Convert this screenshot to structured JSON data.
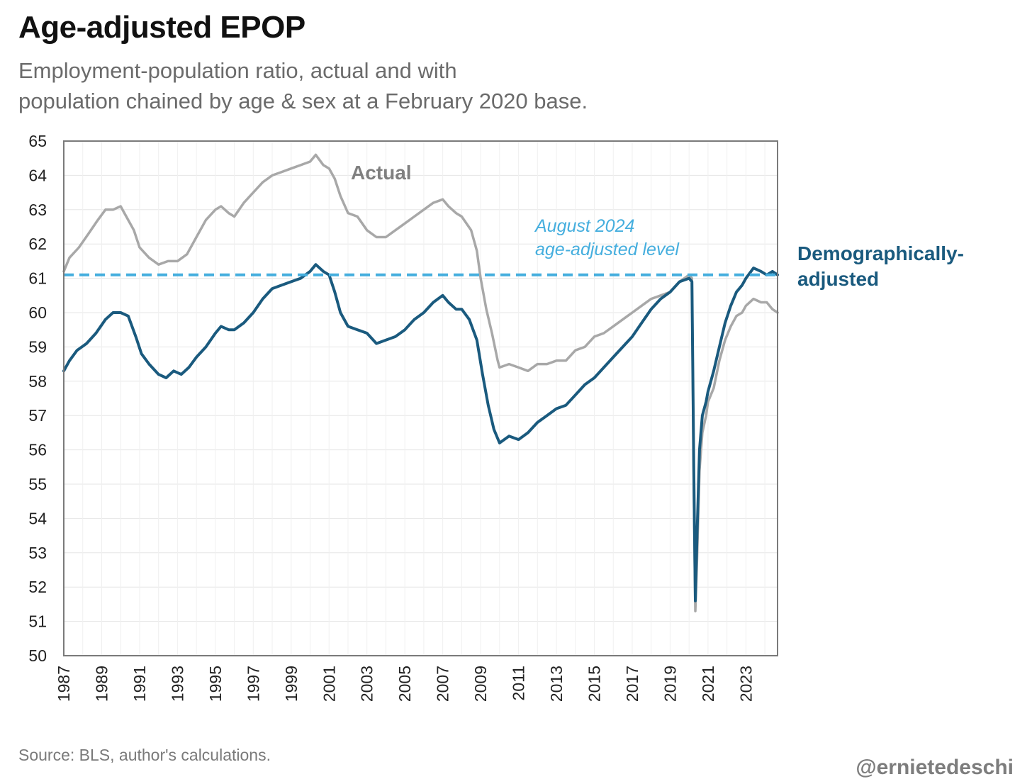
{
  "header": {
    "title": "Age-adjusted EPOP",
    "subtitle_line1": "Employment-population ratio, actual and with",
    "subtitle_line2": "population chained by age & sex at a February 2020 base."
  },
  "footer": {
    "source": "Source: BLS, author's calculations.",
    "handle": "@ernietedeschi"
  },
  "chart_data": {
    "type": "line",
    "xlim": [
      1987.0,
      2024.67
    ],
    "ylim": [
      50,
      65
    ],
    "grid": true,
    "x_ticks": [
      "1987",
      "1989",
      "1991",
      "1993",
      "1995",
      "1997",
      "1999",
      "2001",
      "2003",
      "2005",
      "2007",
      "2009",
      "2011",
      "2013",
      "2015",
      "2017",
      "2019",
      "2021",
      "2023"
    ],
    "y_ticks": [
      50,
      51,
      52,
      53,
      54,
      55,
      56,
      57,
      58,
      59,
      60,
      61,
      62,
      63,
      64,
      65
    ],
    "reference_line": {
      "y": 61.1,
      "label_line1": "August 2024",
      "label_line2": "age-adjusted level",
      "color": "#45aede",
      "style": "dashed"
    },
    "series": [
      {
        "name": "Actual",
        "color": "#a8a8a8",
        "points": [
          [
            1987.0,
            61.2
          ],
          [
            1987.3,
            61.6
          ],
          [
            1987.8,
            61.9
          ],
          [
            1988.3,
            62.3
          ],
          [
            1988.8,
            62.7
          ],
          [
            1989.2,
            63.0
          ],
          [
            1989.6,
            63.0
          ],
          [
            1990.0,
            63.1
          ],
          [
            1990.3,
            62.8
          ],
          [
            1990.7,
            62.4
          ],
          [
            1991.0,
            61.9
          ],
          [
            1991.5,
            61.6
          ],
          [
            1992.0,
            61.4
          ],
          [
            1992.5,
            61.5
          ],
          [
            1993.0,
            61.5
          ],
          [
            1993.5,
            61.7
          ],
          [
            1994.0,
            62.2
          ],
          [
            1994.5,
            62.7
          ],
          [
            1995.0,
            63.0
          ],
          [
            1995.3,
            63.1
          ],
          [
            1995.7,
            62.9
          ],
          [
            1996.0,
            62.8
          ],
          [
            1996.5,
            63.2
          ],
          [
            1997.0,
            63.5
          ],
          [
            1997.5,
            63.8
          ],
          [
            1998.0,
            64.0
          ],
          [
            1998.5,
            64.1
          ],
          [
            1999.0,
            64.2
          ],
          [
            1999.5,
            64.3
          ],
          [
            2000.0,
            64.4
          ],
          [
            2000.3,
            64.6
          ],
          [
            2000.7,
            64.3
          ],
          [
            2001.0,
            64.2
          ],
          [
            2001.3,
            63.9
          ],
          [
            2001.6,
            63.4
          ],
          [
            2002.0,
            62.9
          ],
          [
            2002.5,
            62.8
          ],
          [
            2003.0,
            62.4
          ],
          [
            2003.5,
            62.2
          ],
          [
            2004.0,
            62.2
          ],
          [
            2004.5,
            62.4
          ],
          [
            2005.0,
            62.6
          ],
          [
            2005.5,
            62.8
          ],
          [
            2006.0,
            63.0
          ],
          [
            2006.5,
            63.2
          ],
          [
            2007.0,
            63.3
          ],
          [
            2007.3,
            63.1
          ],
          [
            2007.7,
            62.9
          ],
          [
            2008.0,
            62.8
          ],
          [
            2008.5,
            62.4
          ],
          [
            2008.8,
            61.8
          ],
          [
            2009.0,
            61.0
          ],
          [
            2009.3,
            60.1
          ],
          [
            2009.6,
            59.4
          ],
          [
            2009.9,
            58.6
          ],
          [
            2010.0,
            58.4
          ],
          [
            2010.5,
            58.5
          ],
          [
            2011.0,
            58.4
          ],
          [
            2011.5,
            58.3
          ],
          [
            2012.0,
            58.5
          ],
          [
            2012.5,
            58.5
          ],
          [
            2013.0,
            58.6
          ],
          [
            2013.5,
            58.6
          ],
          [
            2014.0,
            58.9
          ],
          [
            2014.5,
            59.0
          ],
          [
            2015.0,
            59.3
          ],
          [
            2015.5,
            59.4
          ],
          [
            2016.0,
            59.6
          ],
          [
            2016.5,
            59.8
          ],
          [
            2017.0,
            60.0
          ],
          [
            2017.5,
            60.2
          ],
          [
            2018.0,
            60.4
          ],
          [
            2018.5,
            60.5
          ],
          [
            2019.0,
            60.6
          ],
          [
            2019.5,
            60.9
          ],
          [
            2020.0,
            61.1
          ],
          [
            2020.15,
            61.0
          ],
          [
            2020.25,
            55.0
          ],
          [
            2020.33,
            51.3
          ],
          [
            2020.42,
            52.8
          ],
          [
            2020.55,
            55.4
          ],
          [
            2020.7,
            56.5
          ],
          [
            2020.9,
            57.0
          ],
          [
            2021.0,
            57.4
          ],
          [
            2021.3,
            57.8
          ],
          [
            2021.6,
            58.6
          ],
          [
            2021.9,
            59.2
          ],
          [
            2022.2,
            59.6
          ],
          [
            2022.5,
            59.9
          ],
          [
            2022.8,
            60.0
          ],
          [
            2023.0,
            60.2
          ],
          [
            2023.4,
            60.4
          ],
          [
            2023.8,
            60.3
          ],
          [
            2024.1,
            60.3
          ],
          [
            2024.4,
            60.1
          ],
          [
            2024.67,
            60.0
          ]
        ]
      },
      {
        "name": "Demographically-adjusted",
        "name_line1": "Demographically-",
        "name_line2": "adjusted",
        "color": "#1a5a7e",
        "points": [
          [
            1987.0,
            58.3
          ],
          [
            1987.3,
            58.6
          ],
          [
            1987.7,
            58.9
          ],
          [
            1988.2,
            59.1
          ],
          [
            1988.7,
            59.4
          ],
          [
            1989.2,
            59.8
          ],
          [
            1989.6,
            60.0
          ],
          [
            1990.0,
            60.0
          ],
          [
            1990.4,
            59.9
          ],
          [
            1990.8,
            59.3
          ],
          [
            1991.1,
            58.8
          ],
          [
            1991.5,
            58.5
          ],
          [
            1992.0,
            58.2
          ],
          [
            1992.4,
            58.1
          ],
          [
            1992.8,
            58.3
          ],
          [
            1993.2,
            58.2
          ],
          [
            1993.6,
            58.4
          ],
          [
            1994.0,
            58.7
          ],
          [
            1994.5,
            59.0
          ],
          [
            1995.0,
            59.4
          ],
          [
            1995.3,
            59.6
          ],
          [
            1995.7,
            59.5
          ],
          [
            1996.0,
            59.5
          ],
          [
            1996.5,
            59.7
          ],
          [
            1997.0,
            60.0
          ],
          [
            1997.5,
            60.4
          ],
          [
            1998.0,
            60.7
          ],
          [
            1998.5,
            60.8
          ],
          [
            1999.0,
            60.9
          ],
          [
            1999.5,
            61.0
          ],
          [
            2000.0,
            61.2
          ],
          [
            2000.3,
            61.4
          ],
          [
            2000.7,
            61.2
          ],
          [
            2001.0,
            61.1
          ],
          [
            2001.3,
            60.6
          ],
          [
            2001.6,
            60.0
          ],
          [
            2002.0,
            59.6
          ],
          [
            2002.5,
            59.5
          ],
          [
            2003.0,
            59.4
          ],
          [
            2003.5,
            59.1
          ],
          [
            2004.0,
            59.2
          ],
          [
            2004.5,
            59.3
          ],
          [
            2005.0,
            59.5
          ],
          [
            2005.5,
            59.8
          ],
          [
            2006.0,
            60.0
          ],
          [
            2006.5,
            60.3
          ],
          [
            2007.0,
            60.5
          ],
          [
            2007.3,
            60.3
          ],
          [
            2007.7,
            60.1
          ],
          [
            2008.0,
            60.1
          ],
          [
            2008.4,
            59.8
          ],
          [
            2008.8,
            59.2
          ],
          [
            2009.1,
            58.2
          ],
          [
            2009.4,
            57.3
          ],
          [
            2009.7,
            56.6
          ],
          [
            2010.0,
            56.2
          ],
          [
            2010.5,
            56.4
          ],
          [
            2011.0,
            56.3
          ],
          [
            2011.5,
            56.5
          ],
          [
            2012.0,
            56.8
          ],
          [
            2012.5,
            57.0
          ],
          [
            2013.0,
            57.2
          ],
          [
            2013.5,
            57.3
          ],
          [
            2014.0,
            57.6
          ],
          [
            2014.5,
            57.9
          ],
          [
            2015.0,
            58.1
          ],
          [
            2015.5,
            58.4
          ],
          [
            2016.0,
            58.7
          ],
          [
            2016.5,
            59.0
          ],
          [
            2017.0,
            59.3
          ],
          [
            2017.5,
            59.7
          ],
          [
            2018.0,
            60.1
          ],
          [
            2018.5,
            60.4
          ],
          [
            2019.0,
            60.6
          ],
          [
            2019.5,
            60.9
          ],
          [
            2020.0,
            61.0
          ],
          [
            2020.15,
            60.9
          ],
          [
            2020.25,
            55.5
          ],
          [
            2020.33,
            51.6
          ],
          [
            2020.42,
            53.5
          ],
          [
            2020.55,
            56.0
          ],
          [
            2020.7,
            57.0
          ],
          [
            2020.9,
            57.4
          ],
          [
            2021.0,
            57.7
          ],
          [
            2021.3,
            58.3
          ],
          [
            2021.6,
            59.0
          ],
          [
            2021.9,
            59.7
          ],
          [
            2022.2,
            60.2
          ],
          [
            2022.5,
            60.6
          ],
          [
            2022.8,
            60.8
          ],
          [
            2023.0,
            61.0
          ],
          [
            2023.4,
            61.3
          ],
          [
            2023.8,
            61.2
          ],
          [
            2024.1,
            61.1
          ],
          [
            2024.4,
            61.2
          ],
          [
            2024.67,
            61.1
          ]
        ]
      }
    ]
  }
}
